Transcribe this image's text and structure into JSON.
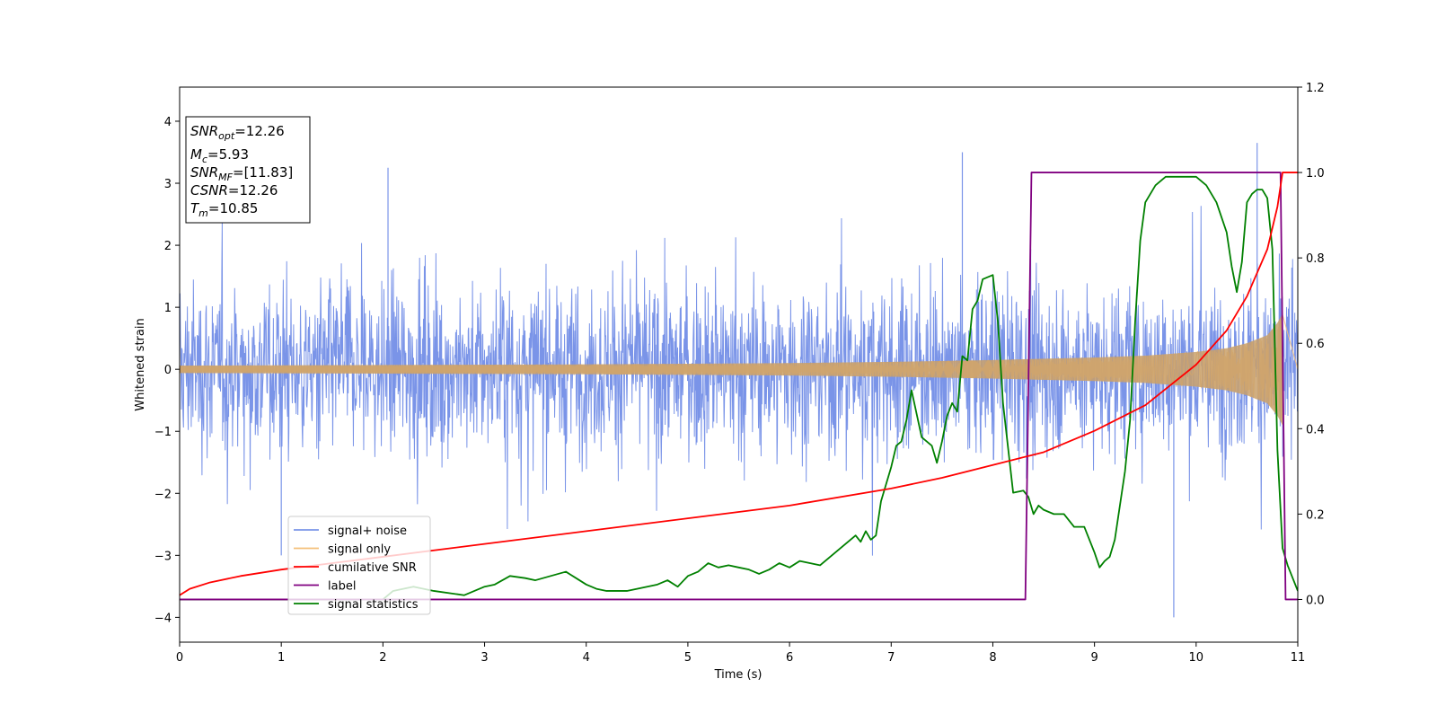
{
  "chart_data": {
    "type": "line",
    "xlabel": "Time (s)",
    "ylabel": "Whitened strain",
    "xlim": [
      0,
      11
    ],
    "ylim": [
      -4.4,
      4.55
    ],
    "y2lim": [
      -0.1,
      1.2
    ],
    "x_ticks": [
      "0",
      "1",
      "2",
      "3",
      "4",
      "5",
      "6",
      "7",
      "8",
      "9",
      "10",
      "11"
    ],
    "y_ticks": [
      "4",
      "3",
      "2",
      "1",
      "0",
      "−1",
      "−2",
      "−3",
      "−4"
    ],
    "y2_ticks": [
      "1.2",
      "1.0",
      "0.8",
      "0.6",
      "0.4",
      "0.2",
      "0.0"
    ],
    "info_box": {
      "snr_opt": {
        "symbol": "SNR",
        "sub": "opt",
        "value": "=12.26"
      },
      "mc": {
        "symbol": "M",
        "sub": "c",
        "value": "=5.93"
      },
      "snr_mf": {
        "symbol": "SNR",
        "sub": "MF",
        "value": "=[11.83]"
      },
      "csnr": {
        "symbol": "CSNR",
        "value": "=12.26"
      },
      "tm": {
        "symbol": "T",
        "sub": "m",
        "value": "=10.85"
      }
    },
    "legend": {
      "position": "lower-left",
      "entries": [
        {
          "label": "signal+ noise",
          "color": "#7a94e8"
        },
        {
          "label": "signal only",
          "color": "#f5c07a"
        },
        {
          "label": "cumilative SNR",
          "color": "#ff0000"
        },
        {
          "label": "label",
          "color": "#800080"
        },
        {
          "label": "signal statistics",
          "color": "#008000"
        }
      ]
    },
    "series": [
      {
        "name": "signal+ noise",
        "axis": "left",
        "color": "#7a94e8",
        "style": "dense noise, approx ±1.5 with spikes to ±3.6",
        "peaks": {
          "x": [
            2.05,
            7.7,
            10.6,
            9.78,
            1.0
          ],
          "y": [
            3.25,
            3.5,
            3.65,
            -4.0,
            -3.0
          ]
        }
      },
      {
        "name": "signal only",
        "axis": "left",
        "color": "#f5c07a",
        "style": "chirp with growing amplitude",
        "envelope": {
          "x": [
            0,
            2,
            4,
            6,
            7,
            8,
            9,
            9.5,
            10,
            10.3,
            10.5,
            10.7,
            10.8,
            10.85
          ],
          "amplitude": [
            0.06,
            0.07,
            0.08,
            0.1,
            0.12,
            0.15,
            0.19,
            0.22,
            0.28,
            0.34,
            0.42,
            0.55,
            0.75,
            0.9
          ]
        }
      },
      {
        "name": "cumilative SNR",
        "axis": "right",
        "color": "#ff0000",
        "x": [
          0,
          0.1,
          0.3,
          0.6,
          1,
          2,
          3,
          4,
          5,
          6,
          7,
          7.5,
          8,
          8.5,
          9,
          9.5,
          10,
          10.3,
          10.5,
          10.7,
          10.8,
          10.85,
          11
        ],
        "y": [
          0.01,
          0.025,
          0.04,
          0.055,
          0.07,
          0.1,
          0.13,
          0.16,
          0.19,
          0.22,
          0.26,
          0.285,
          0.315,
          0.345,
          0.395,
          0.455,
          0.55,
          0.63,
          0.71,
          0.82,
          0.92,
          1.0,
          1.0
        ]
      },
      {
        "name": "label",
        "axis": "right",
        "color": "#800080",
        "x": [
          0,
          8.32,
          8.38,
          10.83,
          10.88,
          11
        ],
        "y": [
          0,
          0,
          1,
          1,
          0,
          0
        ]
      },
      {
        "name": "signal statistics",
        "axis": "right",
        "color": "#008000",
        "x": [
          0,
          0.3,
          1,
          1.5,
          2,
          2.1,
          2.3,
          2.5,
          2.8,
          3,
          3.1,
          3.25,
          3.4,
          3.5,
          3.65,
          3.8,
          3.9,
          4,
          4.1,
          4.2,
          4.3,
          4.4,
          4.5,
          4.6,
          4.7,
          4.8,
          4.9,
          5,
          5.1,
          5.2,
          5.3,
          5.4,
          5.5,
          5.6,
          5.7,
          5.8,
          5.9,
          6,
          6.1,
          6.2,
          6.3,
          6.4,
          6.5,
          6.6,
          6.65,
          6.7,
          6.75,
          6.8,
          6.85,
          6.9,
          6.95,
          7.0,
          7.05,
          7.1,
          7.15,
          7.2,
          7.3,
          7.4,
          7.45,
          7.5,
          7.55,
          7.6,
          7.65,
          7.7,
          7.75,
          7.8,
          7.85,
          7.9,
          8.0,
          8.05,
          8.1,
          8.2,
          8.3,
          8.35,
          8.4,
          8.45,
          8.5,
          8.6,
          8.7,
          8.8,
          8.9,
          9.0,
          9.05,
          9.1,
          9.15,
          9.2,
          9.3,
          9.35,
          9.4,
          9.45,
          9.5,
          9.6,
          9.7,
          9.8,
          9.9,
          10.0,
          10.1,
          10.2,
          10.3,
          10.35,
          10.4,
          10.45,
          10.5,
          10.55,
          10.6,
          10.65,
          10.7,
          10.75,
          10.8,
          10.85,
          10.9,
          10.95,
          11.0
        ],
        "y": [
          0.0,
          0.0,
          0.0,
          0.0,
          0.0,
          0.02,
          0.03,
          0.02,
          0.01,
          0.03,
          0.035,
          0.055,
          0.05,
          0.045,
          0.055,
          0.065,
          0.05,
          0.035,
          0.025,
          0.02,
          0.02,
          0.02,
          0.025,
          0.03,
          0.035,
          0.045,
          0.03,
          0.055,
          0.065,
          0.085,
          0.075,
          0.08,
          0.075,
          0.07,
          0.06,
          0.07,
          0.085,
          0.075,
          0.09,
          0.085,
          0.08,
          0.1,
          0.12,
          0.14,
          0.15,
          0.135,
          0.16,
          0.14,
          0.15,
          0.23,
          0.27,
          0.31,
          0.36,
          0.37,
          0.42,
          0.49,
          0.38,
          0.36,
          0.32,
          0.37,
          0.43,
          0.46,
          0.44,
          0.57,
          0.56,
          0.68,
          0.7,
          0.75,
          0.76,
          0.65,
          0.46,
          0.25,
          0.255,
          0.24,
          0.2,
          0.22,
          0.21,
          0.2,
          0.2,
          0.17,
          0.17,
          0.11,
          0.075,
          0.09,
          0.1,
          0.14,
          0.3,
          0.42,
          0.65,
          0.84,
          0.93,
          0.97,
          0.99,
          0.99,
          0.99,
          0.99,
          0.97,
          0.93,
          0.86,
          0.78,
          0.72,
          0.79,
          0.93,
          0.95,
          0.96,
          0.96,
          0.94,
          0.82,
          0.35,
          0.12,
          0.08,
          0.05,
          0.02
        ]
      }
    ]
  }
}
